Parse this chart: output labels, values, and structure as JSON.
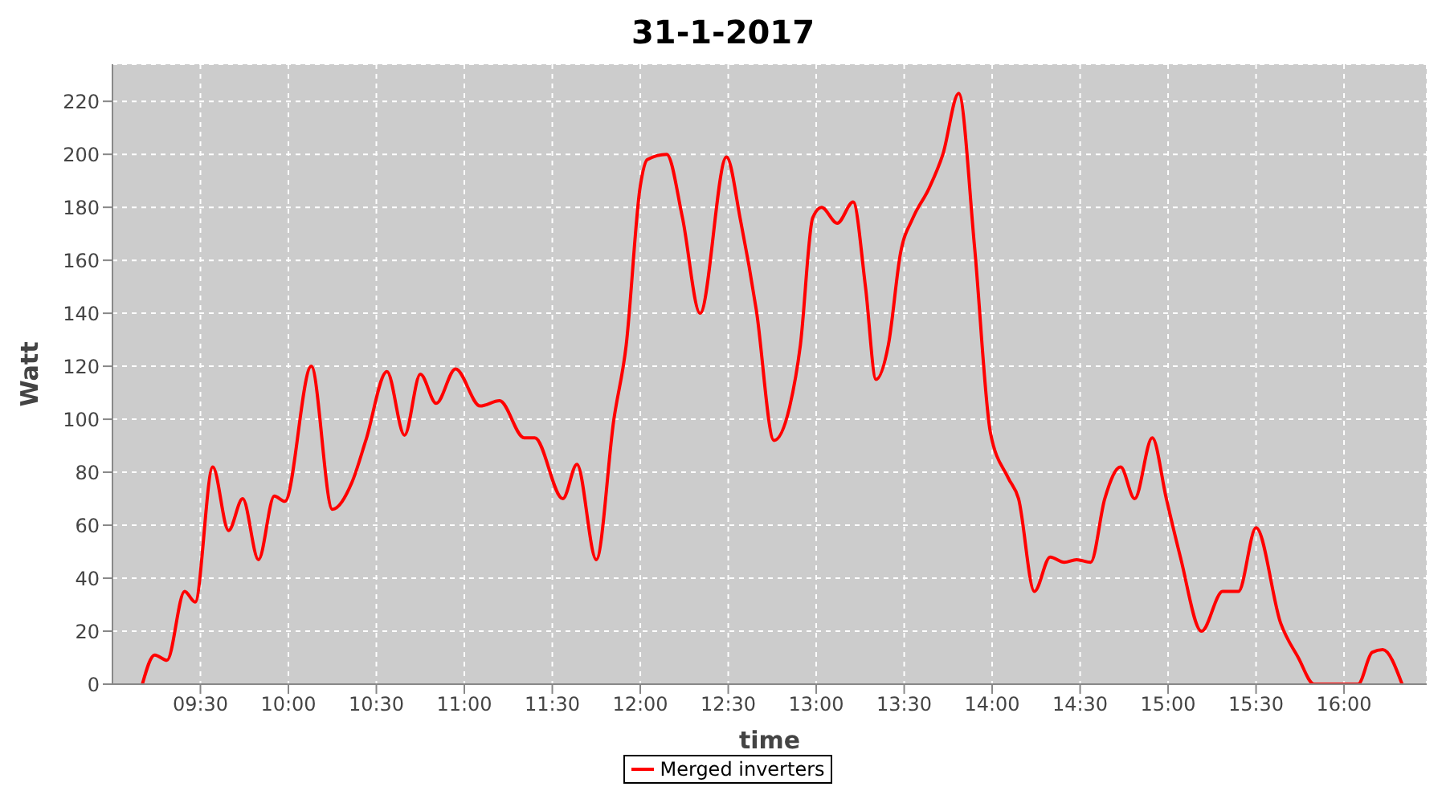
{
  "chart_data": {
    "type": "line",
    "title": "31-1-2017",
    "xlabel": "time",
    "ylabel": "Watt",
    "xlim": [
      9.0,
      16.47
    ],
    "ylim": [
      0,
      234
    ],
    "xticks": [
      {
        "value": 9.5,
        "label": "09:30"
      },
      {
        "value": 10,
        "label": "10:00"
      },
      {
        "value": 10.5,
        "label": "10:30"
      },
      {
        "value": 11,
        "label": "11:00"
      },
      {
        "value": 11.5,
        "label": "11:30"
      },
      {
        "value": 12,
        "label": "12:00"
      },
      {
        "value": 12.5,
        "label": "12:30"
      },
      {
        "value": 13,
        "label": "13:00"
      },
      {
        "value": 13.5,
        "label": "13:30"
      },
      {
        "value": 14,
        "label": "14:00"
      },
      {
        "value": 14.5,
        "label": "14:30"
      },
      {
        "value": 15,
        "label": "15:00"
      },
      {
        "value": 15.5,
        "label": "15:30"
      },
      {
        "value": 16,
        "label": "16:00"
      }
    ],
    "yticks": [
      0,
      20,
      40,
      60,
      80,
      100,
      120,
      140,
      160,
      180,
      200,
      220
    ],
    "grid": true,
    "legend": "bottom",
    "marker": "none",
    "line_style": "solid",
    "x": [
      9.17,
      9.24,
      9.31,
      9.41,
      9.47,
      9.57,
      9.66,
      9.74,
      9.83,
      9.92,
      9.98,
      10.13,
      10.25,
      10.36,
      10.44,
      10.56,
      10.66,
      10.75,
      10.84,
      10.95,
      11.09,
      11.2,
      11.34,
      11.4,
      11.56,
      11.64,
      11.75,
      11.85,
      11.92,
      12.0,
      12.04,
      12.15,
      12.24,
      12.34,
      12.49,
      12.57,
      12.66,
      12.76,
      12.85,
      12.91,
      12.98,
      13.03,
      13.12,
      13.21,
      13.28,
      13.34,
      13.41,
      13.48,
      13.55,
      13.64,
      13.72,
      13.81,
      13.9,
      13.99,
      14.09,
      14.15,
      14.24,
      14.33,
      14.41,
      14.48,
      14.56,
      14.64,
      14.73,
      14.81,
      14.91,
      14.99,
      15.07,
      15.19,
      15.31,
      15.4,
      15.5,
      15.64,
      15.74,
      15.83,
      15.97,
      16.08,
      16.16,
      16.22,
      16.33
    ],
    "series": [
      {
        "name": "Merged inverters",
        "color": "#ff0000",
        "values": [
          0,
          11,
          9,
          35,
          31,
          82,
          58,
          70,
          47,
          71,
          69,
          120,
          66,
          76,
          92,
          118,
          94,
          117,
          106,
          119,
          105,
          107,
          93,
          93,
          70,
          83,
          47,
          100,
          128,
          188,
          198,
          200,
          176,
          140,
          199,
          175,
          141,
          92,
          105,
          128,
          176,
          180,
          174,
          182,
          150,
          115,
          128,
          163,
          176,
          187,
          200,
          223,
          165,
          95,
          78,
          70,
          35,
          48,
          46,
          47,
          46,
          70,
          82,
          70,
          93,
          70,
          48,
          20,
          35,
          35,
          59,
          23,
          10,
          0,
          0,
          0,
          12,
          13,
          0
        ]
      }
    ]
  }
}
